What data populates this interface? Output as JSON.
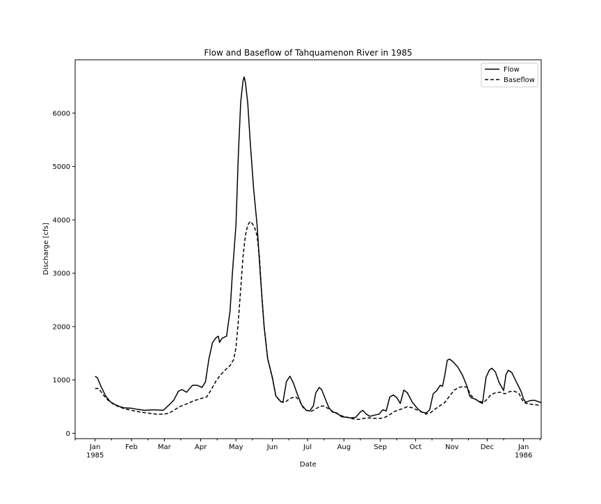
{
  "chart_data": {
    "type": "line",
    "title": "Flow and Baseflow of Tahquamenon River in 1985",
    "xlabel": "Date",
    "ylabel": "Discharge [cfs]",
    "xlim": [
      "1984-12-15",
      "1986-01-16"
    ],
    "ylim": [
      -100,
      7000
    ],
    "yticks": [
      0,
      1000,
      2000,
      3000,
      4000,
      5000,
      6000
    ],
    "xticks": [
      {
        "date": "1985-01-01",
        "label": "Jan",
        "sublabel": "1985"
      },
      {
        "date": "1985-02-01",
        "label": "Feb",
        "sublabel": ""
      },
      {
        "date": "1985-03-01",
        "label": "Mar",
        "sublabel": ""
      },
      {
        "date": "1985-04-01",
        "label": "Apr",
        "sublabel": ""
      },
      {
        "date": "1985-05-01",
        "label": "May",
        "sublabel": ""
      },
      {
        "date": "1985-06-01",
        "label": "Jun",
        "sublabel": ""
      },
      {
        "date": "1985-07-01",
        "label": "Jul",
        "sublabel": ""
      },
      {
        "date": "1985-08-01",
        "label": "Aug",
        "sublabel": ""
      },
      {
        "date": "1985-09-01",
        "label": "Sep",
        "sublabel": ""
      },
      {
        "date": "1985-10-01",
        "label": "Oct",
        "sublabel": ""
      },
      {
        "date": "1985-11-01",
        "label": "Nov",
        "sublabel": ""
      },
      {
        "date": "1985-12-01",
        "label": "Dec",
        "sublabel": ""
      },
      {
        "date": "1986-01-01",
        "label": "Jan",
        "sublabel": "1986"
      }
    ],
    "minor_xticks": [
      "1984-12-15",
      "1985-01-15",
      "1985-02-15",
      "1985-03-15",
      "1985-04-15",
      "1985-05-15",
      "1985-06-15",
      "1985-07-15",
      "1985-08-15",
      "1985-09-15",
      "1985-10-15",
      "1985-11-15",
      "1985-12-15",
      "1986-01-15"
    ],
    "grid": false,
    "legend_position": "top-right",
    "series": [
      {
        "name": "Flow",
        "color": "#000000",
        "style": "solid",
        "points": [
          [
            "1985-01-01",
            1070
          ],
          [
            "1985-01-03",
            1040
          ],
          [
            "1985-01-06",
            880
          ],
          [
            "1985-01-10",
            700
          ],
          [
            "1985-01-14",
            590
          ],
          [
            "1985-01-18",
            540
          ],
          [
            "1985-01-21",
            510
          ],
          [
            "1985-01-25",
            480
          ],
          [
            "1985-02-01",
            470
          ],
          [
            "1985-02-06",
            450
          ],
          [
            "1985-02-12",
            430
          ],
          [
            "1985-02-20",
            440
          ],
          [
            "1985-02-28",
            430
          ],
          [
            "1985-03-05",
            530
          ],
          [
            "1985-03-09",
            620
          ],
          [
            "1985-03-13",
            790
          ],
          [
            "1985-03-16",
            820
          ],
          [
            "1985-03-20",
            770
          ],
          [
            "1985-03-25",
            900
          ],
          [
            "1985-03-29",
            900
          ],
          [
            "1985-04-02",
            860
          ],
          [
            "1985-04-05",
            960
          ],
          [
            "1985-04-08",
            1400
          ],
          [
            "1985-04-11",
            1700
          ],
          [
            "1985-04-14",
            1790
          ],
          [
            "1985-04-16",
            1820
          ],
          [
            "1985-04-17",
            1700
          ],
          [
            "1985-04-19",
            1780
          ],
          [
            "1985-04-23",
            1820
          ],
          [
            "1985-04-26",
            2300
          ],
          [
            "1985-04-28",
            3000
          ],
          [
            "1985-05-01",
            3900
          ],
          [
            "1985-05-03",
            5200
          ],
          [
            "1985-05-05",
            6200
          ],
          [
            "1985-05-07",
            6600
          ],
          [
            "1985-05-08",
            6680
          ],
          [
            "1985-05-09",
            6580
          ],
          [
            "1985-05-11",
            6200
          ],
          [
            "1985-05-13",
            5500
          ],
          [
            "1985-05-16",
            4600
          ],
          [
            "1985-05-19",
            3900
          ],
          [
            "1985-05-22",
            2900
          ],
          [
            "1985-05-25",
            2000
          ],
          [
            "1985-05-28",
            1400
          ],
          [
            "1985-06-01",
            1050
          ],
          [
            "1985-06-04",
            700
          ],
          [
            "1985-06-08",
            600
          ],
          [
            "1985-06-10",
            580
          ],
          [
            "1985-06-13",
            970
          ],
          [
            "1985-06-16",
            1070
          ],
          [
            "1985-06-19",
            940
          ],
          [
            "1985-06-22",
            750
          ],
          [
            "1985-06-26",
            530
          ],
          [
            "1985-06-30",
            430
          ],
          [
            "1985-07-03",
            420
          ],
          [
            "1985-07-06",
            520
          ],
          [
            "1985-07-08",
            760
          ],
          [
            "1985-07-11",
            860
          ],
          [
            "1985-07-13",
            820
          ],
          [
            "1985-07-16",
            650
          ],
          [
            "1985-07-19",
            490
          ],
          [
            "1985-07-22",
            400
          ],
          [
            "1985-07-26",
            380
          ],
          [
            "1985-07-30",
            310
          ],
          [
            "1985-08-03",
            300
          ],
          [
            "1985-08-07",
            290
          ],
          [
            "1985-08-11",
            300
          ],
          [
            "1985-08-15",
            400
          ],
          [
            "1985-08-17",
            430
          ],
          [
            "1985-08-20",
            360
          ],
          [
            "1985-08-23",
            320
          ],
          [
            "1985-08-27",
            340
          ],
          [
            "1985-08-31",
            360
          ],
          [
            "1985-09-03",
            440
          ],
          [
            "1985-09-06",
            420
          ],
          [
            "1985-09-09",
            680
          ],
          [
            "1985-09-12",
            720
          ],
          [
            "1985-09-15",
            670
          ],
          [
            "1985-09-18",
            560
          ],
          [
            "1985-09-21",
            810
          ],
          [
            "1985-09-24",
            760
          ],
          [
            "1985-09-28",
            590
          ],
          [
            "1985-10-02",
            480
          ],
          [
            "1985-10-06",
            400
          ],
          [
            "1985-10-10",
            380
          ],
          [
            "1985-10-13",
            440
          ],
          [
            "1985-10-16",
            740
          ],
          [
            "1985-10-19",
            800
          ],
          [
            "1985-10-22",
            900
          ],
          [
            "1985-10-24",
            880
          ],
          [
            "1985-10-26",
            1100
          ],
          [
            "1985-10-28",
            1370
          ],
          [
            "1985-10-30",
            1390
          ],
          [
            "1985-11-02",
            1340
          ],
          [
            "1985-11-06",
            1240
          ],
          [
            "1985-11-10",
            1090
          ],
          [
            "1985-11-14",
            870
          ],
          [
            "1985-11-16",
            700
          ],
          [
            "1985-11-18",
            660
          ],
          [
            "1985-11-21",
            640
          ],
          [
            "1985-11-25",
            580
          ],
          [
            "1985-11-27",
            560
          ],
          [
            "1985-11-30",
            1050
          ],
          [
            "1985-12-03",
            1190
          ],
          [
            "1985-12-05",
            1220
          ],
          [
            "1985-12-08",
            1150
          ],
          [
            "1985-12-11",
            960
          ],
          [
            "1985-12-14",
            840
          ],
          [
            "1985-12-15",
            800
          ],
          [
            "1985-12-17",
            1100
          ],
          [
            "1985-12-19",
            1180
          ],
          [
            "1985-12-22",
            1140
          ],
          [
            "1985-12-25",
            1000
          ],
          [
            "1985-12-28",
            870
          ],
          [
            "1985-12-30",
            780
          ],
          [
            "1986-01-01",
            640
          ],
          [
            "1986-01-03",
            580
          ],
          [
            "1986-01-06",
            610
          ],
          [
            "1986-01-10",
            620
          ],
          [
            "1986-01-14",
            590
          ],
          [
            "1986-01-18",
            560
          ],
          [
            "1986-01-23",
            540
          ],
          [
            "1986-01-28",
            530
          ],
          [
            "1986-02-01",
            510
          ]
        ]
      },
      {
        "name": "Baseflow",
        "color": "#000000",
        "style": "dashed",
        "points": [
          [
            "1985-01-01",
            840
          ],
          [
            "1985-01-04",
            840
          ],
          [
            "1985-01-08",
            720
          ],
          [
            "1985-01-12",
            620
          ],
          [
            "1985-01-17",
            540
          ],
          [
            "1985-01-21",
            500
          ],
          [
            "1985-01-26",
            460
          ],
          [
            "1985-02-01",
            430
          ],
          [
            "1985-02-08",
            400
          ],
          [
            "1985-02-15",
            380
          ],
          [
            "1985-02-22",
            360
          ],
          [
            "1985-03-01",
            360
          ],
          [
            "1985-03-05",
            380
          ],
          [
            "1985-03-09",
            430
          ],
          [
            "1985-03-14",
            500
          ],
          [
            "1985-03-20",
            550
          ],
          [
            "1985-03-26",
            610
          ],
          [
            "1985-04-01",
            650
          ],
          [
            "1985-04-06",
            680
          ],
          [
            "1985-04-10",
            820
          ],
          [
            "1985-04-14",
            980
          ],
          [
            "1985-04-18",
            1100
          ],
          [
            "1985-04-22",
            1190
          ],
          [
            "1985-04-26",
            1270
          ],
          [
            "1985-04-29",
            1380
          ],
          [
            "1985-05-01",
            1600
          ],
          [
            "1985-05-03",
            2100
          ],
          [
            "1985-05-05",
            2700
          ],
          [
            "1985-05-07",
            3300
          ],
          [
            "1985-05-09",
            3700
          ],
          [
            "1985-05-11",
            3900
          ],
          [
            "1985-05-13",
            3970
          ],
          [
            "1985-05-15",
            3930
          ],
          [
            "1985-05-17",
            3850
          ],
          [
            "1985-05-19",
            3700
          ],
          [
            "1985-05-21",
            3300
          ],
          [
            "1985-05-23",
            2600
          ],
          [
            "1985-05-25",
            2000
          ],
          [
            "1985-05-28",
            1400
          ],
          [
            "1985-06-01",
            1040
          ],
          [
            "1985-06-04",
            700
          ],
          [
            "1985-06-08",
            590
          ],
          [
            "1985-06-12",
            580
          ],
          [
            "1985-06-15",
            640
          ],
          [
            "1985-06-18",
            670
          ],
          [
            "1985-06-21",
            680
          ],
          [
            "1985-06-24",
            620
          ],
          [
            "1985-06-27",
            490
          ],
          [
            "1985-06-30",
            430
          ],
          [
            "1985-07-04",
            410
          ],
          [
            "1985-07-08",
            460
          ],
          [
            "1985-07-12",
            510
          ],
          [
            "1985-07-15",
            510
          ],
          [
            "1985-07-19",
            460
          ],
          [
            "1985-07-23",
            400
          ],
          [
            "1985-07-27",
            360
          ],
          [
            "1985-07-31",
            320
          ],
          [
            "1985-08-04",
            300
          ],
          [
            "1985-08-09",
            270
          ],
          [
            "1985-08-14",
            260
          ],
          [
            "1985-08-18",
            280
          ],
          [
            "1985-08-22",
            290
          ],
          [
            "1985-08-27",
            280
          ],
          [
            "1985-09-01",
            280
          ],
          [
            "1985-09-05",
            300
          ],
          [
            "1985-09-09",
            350
          ],
          [
            "1985-09-13",
            410
          ],
          [
            "1985-09-17",
            440
          ],
          [
            "1985-09-21",
            470
          ],
          [
            "1985-09-24",
            500
          ],
          [
            "1985-09-28",
            480
          ],
          [
            "1985-10-02",
            440
          ],
          [
            "1985-10-06",
            400
          ],
          [
            "1985-10-10",
            360
          ],
          [
            "1985-10-14",
            390
          ],
          [
            "1985-10-18",
            460
          ],
          [
            "1985-10-22",
            520
          ],
          [
            "1985-10-26",
            580
          ],
          [
            "1985-10-30",
            700
          ],
          [
            "1985-11-03",
            810
          ],
          [
            "1985-11-07",
            860
          ],
          [
            "1985-11-11",
            880
          ],
          [
            "1985-11-14",
            860
          ],
          [
            "1985-11-17",
            720
          ],
          [
            "1985-11-20",
            650
          ],
          [
            "1985-11-24",
            600
          ],
          [
            "1985-11-28",
            580
          ],
          [
            "1985-12-01",
            640
          ],
          [
            "1985-12-04",
            720
          ],
          [
            "1985-12-08",
            760
          ],
          [
            "1985-12-12",
            770
          ],
          [
            "1985-12-16",
            740
          ],
          [
            "1985-12-20",
            780
          ],
          [
            "1985-12-24",
            790
          ],
          [
            "1985-12-28",
            750
          ],
          [
            "1986-01-01",
            580
          ],
          [
            "1986-01-05",
            550
          ],
          [
            "1986-01-10",
            540
          ],
          [
            "1986-01-16",
            520
          ],
          [
            "1986-01-22",
            500
          ],
          [
            "1986-01-28",
            470
          ],
          [
            "1986-02-01",
            450
          ]
        ]
      }
    ]
  }
}
